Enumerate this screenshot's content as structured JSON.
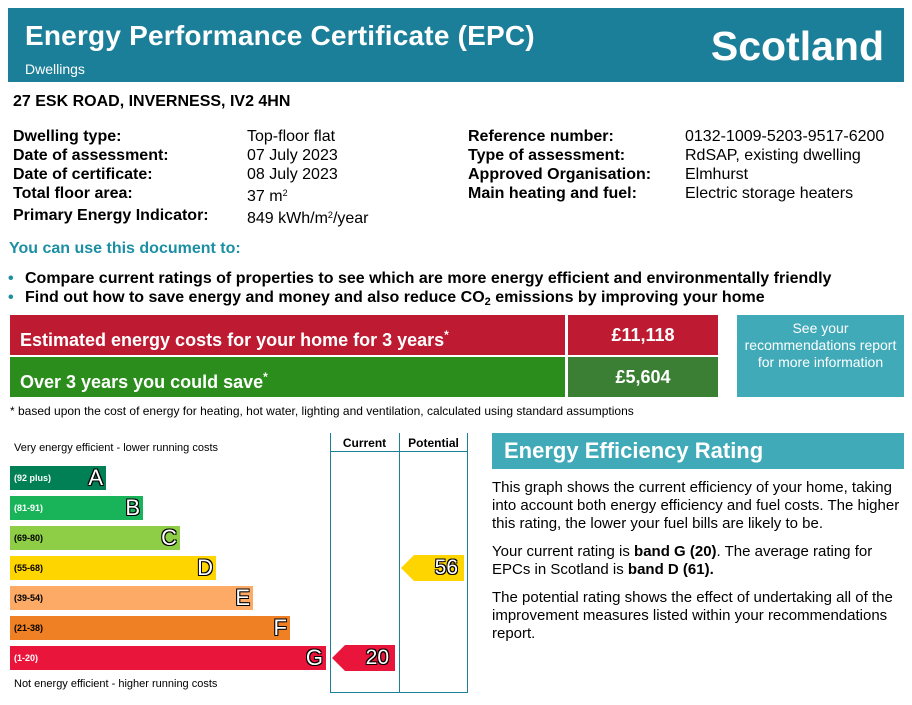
{
  "header": {
    "title": "Energy Performance Certificate (EPC)",
    "subtitle": "Dwellings",
    "country": "Scotland"
  },
  "address": "27 ESK ROAD, INVERNESS, IV2 4HN",
  "details_left": [
    {
      "label": "Dwelling type:",
      "value": "Top-floor flat"
    },
    {
      "label": "Date of assessment:",
      "value": "07 July 2023"
    },
    {
      "label": "Date of certificate:",
      "value": "08 July 2023"
    },
    {
      "label": "Total floor area:",
      "value": "37 m",
      "sup": "2"
    },
    {
      "label": "Primary Energy Indicator:",
      "value": "849 kWh/m",
      "sup": "2",
      "value_after": "/year"
    }
  ],
  "details_right": [
    {
      "label": "Reference number:",
      "value": "0132-1009-5203-9517-6200"
    },
    {
      "label": "Type of assessment:",
      "value": "RdSAP, existing dwelling"
    },
    {
      "label": "Approved Organisation:",
      "value": "Elmhurst"
    },
    {
      "label": "Main heating and fuel:",
      "value": "Electric storage heaters"
    }
  ],
  "use_heading": "You can use this document to:",
  "bullets": [
    {
      "bullet": "•",
      "text": "Compare current ratings of properties to see which are more energy efficient and environmentally friendly"
    },
    {
      "bullet": "•",
      "text": "Find out how to save energy and money and also reduce CO",
      "sub": "2",
      "text_after": " emissions by improving your home"
    }
  ],
  "costs": {
    "estimated_label": "Estimated energy costs for your home for 3 years",
    "estimated_mark": "*",
    "estimated_value": "£11,118",
    "save_label": "Over 3 years you could save",
    "save_mark": "*",
    "save_value": "£5,604",
    "see_box": "See your recommendations report for more information"
  },
  "footnote": "* based upon the cost of energy for heating, hot water, lighting and ventilation, calculated using standard assumptions",
  "rating_chart": {
    "top_label": "Very energy efficient - lower running costs",
    "bottom_label": "Not energy efficient - higher running costs",
    "col_current": "Current",
    "col_potential": "Potential",
    "bands": [
      {
        "range": "(92 plus)",
        "letter": "A",
        "color": "#008054"
      },
      {
        "range": "(81-91)",
        "letter": "B",
        "color": "#19b459"
      },
      {
        "range": "(69-80)",
        "letter": "C",
        "color": "#8dce46"
      },
      {
        "range": "(55-68)",
        "letter": "D",
        "color": "#ffd500"
      },
      {
        "range": "(39-54)",
        "letter": "E",
        "color": "#fcaa65"
      },
      {
        "range": "(21-38)",
        "letter": "F",
        "color": "#ef8023"
      },
      {
        "range": "(1-20)",
        "letter": "G",
        "color": "#e9153b"
      }
    ],
    "current": {
      "value": "20",
      "band": "G",
      "color": "#e9153b"
    },
    "potential": {
      "value": "56",
      "band": "D",
      "color": "#ffd500"
    }
  },
  "eer": {
    "heading": "Energy Efficiency Rating",
    "p1": "This graph shows the current efficiency of your home, taking into account both energy efficiency and fuel costs. The higher this rating, the lower your fuel bills are likely to be.",
    "p2_a": "Your current rating is ",
    "p2_b": "band G (20)",
    "p2_c": ". The average rating for EPCs in Scotland is ",
    "p2_d": "band D (61).",
    "p3": "The potential rating shows the effect of undertaking all of the improvement measures listed within your recommendations report."
  }
}
